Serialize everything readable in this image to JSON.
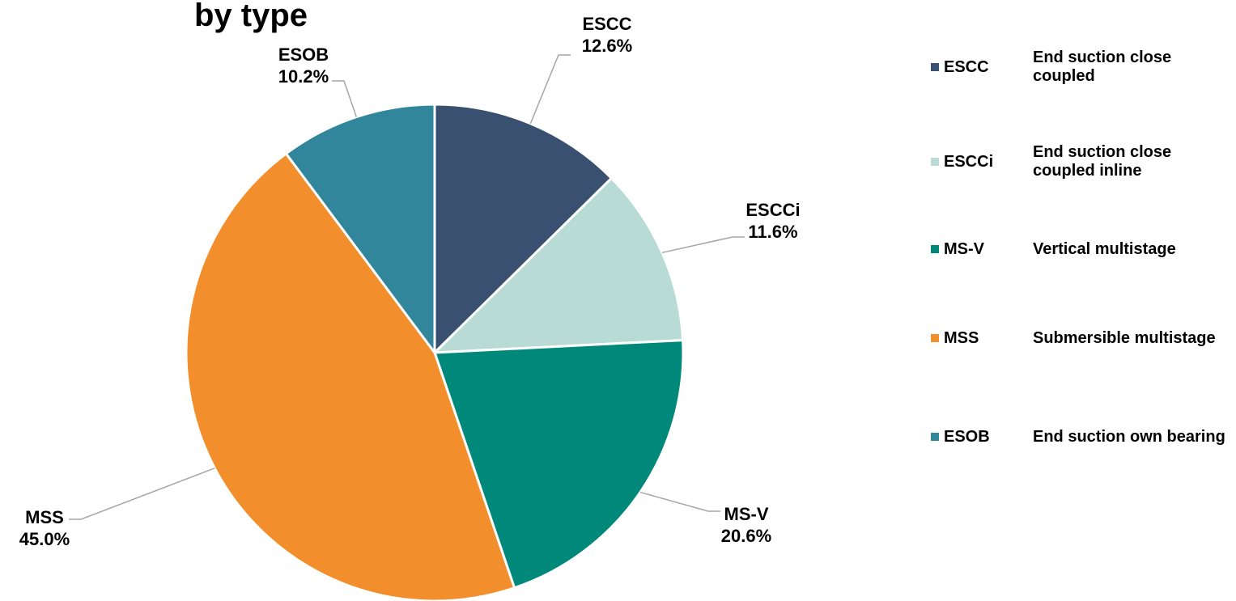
{
  "chart_data": {
    "type": "pie",
    "title": "by type",
    "categories": [
      "ESCC",
      "ESCCi",
      "MS-V",
      "MSS",
      "ESOB"
    ],
    "descriptions": [
      "End suction close coupled",
      "End suction close coupled inline",
      "Vertical multistage",
      "Submersible multistage",
      "End suction own bearing"
    ],
    "values": [
      12.6,
      11.6,
      20.6,
      45.0,
      10.2
    ],
    "value_labels": [
      "12.6%",
      "11.6%",
      "20.6%",
      "45.0%",
      "10.2%"
    ],
    "colors": [
      "#3a5070",
      "#b8dcd5",
      "#00897b",
      "#f28e2b",
      "#31869b"
    ],
    "legend": "right"
  }
}
